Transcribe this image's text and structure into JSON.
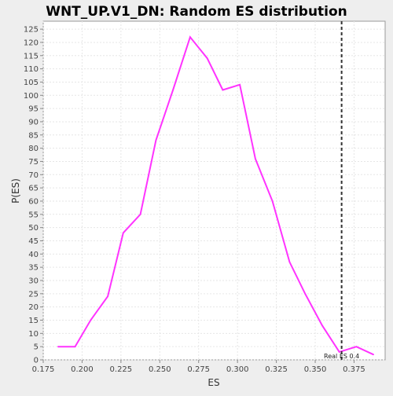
{
  "chart_data": {
    "type": "line",
    "title": "WNT_UP.V1_DN: Random ES distribution",
    "xlabel": "ES",
    "ylabel": "P(ES)",
    "xlim": [
      0.175,
      0.395
    ],
    "ylim": [
      0,
      128
    ],
    "x_ticks": [
      "0.175",
      "0.200",
      "0.225",
      "0.250",
      "0.275",
      "0.300",
      "0.325",
      "0.350",
      "0.375"
    ],
    "y_ticks": [
      "0",
      "5",
      "10",
      "15",
      "20",
      "25",
      "30",
      "35",
      "40",
      "45",
      "50",
      "55",
      "60",
      "65",
      "70",
      "75",
      "80",
      "85",
      "90",
      "95",
      "100",
      "105",
      "110",
      "115",
      "120",
      "125"
    ],
    "series": [
      {
        "color": "#ff33ff",
        "x": [
          0.1845,
          0.1955,
          0.2055,
          0.2165,
          0.2265,
          0.2375,
          0.2475,
          0.2585,
          0.2695,
          0.2805,
          0.2905,
          0.3015,
          0.3115,
          0.3225,
          0.3335,
          0.3435,
          0.3545,
          0.3655,
          0.3765,
          0.3875
        ],
        "y": [
          5,
          5,
          15,
          24,
          48,
          55,
          83,
          102,
          122,
          114,
          102,
          104,
          76,
          60,
          37,
          25,
          13,
          3,
          5,
          2
        ]
      }
    ],
    "real_es": {
      "value": 0.367,
      "label": "Real ES 0.4",
      "color": "#333333"
    },
    "grid": true,
    "plot_background": "#ffffff",
    "grid_color": "#e6e6e6"
  }
}
